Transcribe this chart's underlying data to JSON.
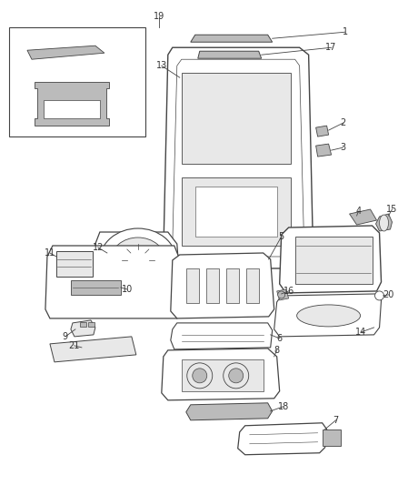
{
  "bg_color": "#ffffff",
  "line_color": "#444444",
  "label_color": "#333333",
  "label_fontsize": 7.0,
  "figsize": [
    4.38,
    5.33
  ],
  "dpi": 100,
  "fc_part": "#e8e8e8",
  "fc_white": "#ffffff",
  "fc_dark": "#bbbbbb"
}
